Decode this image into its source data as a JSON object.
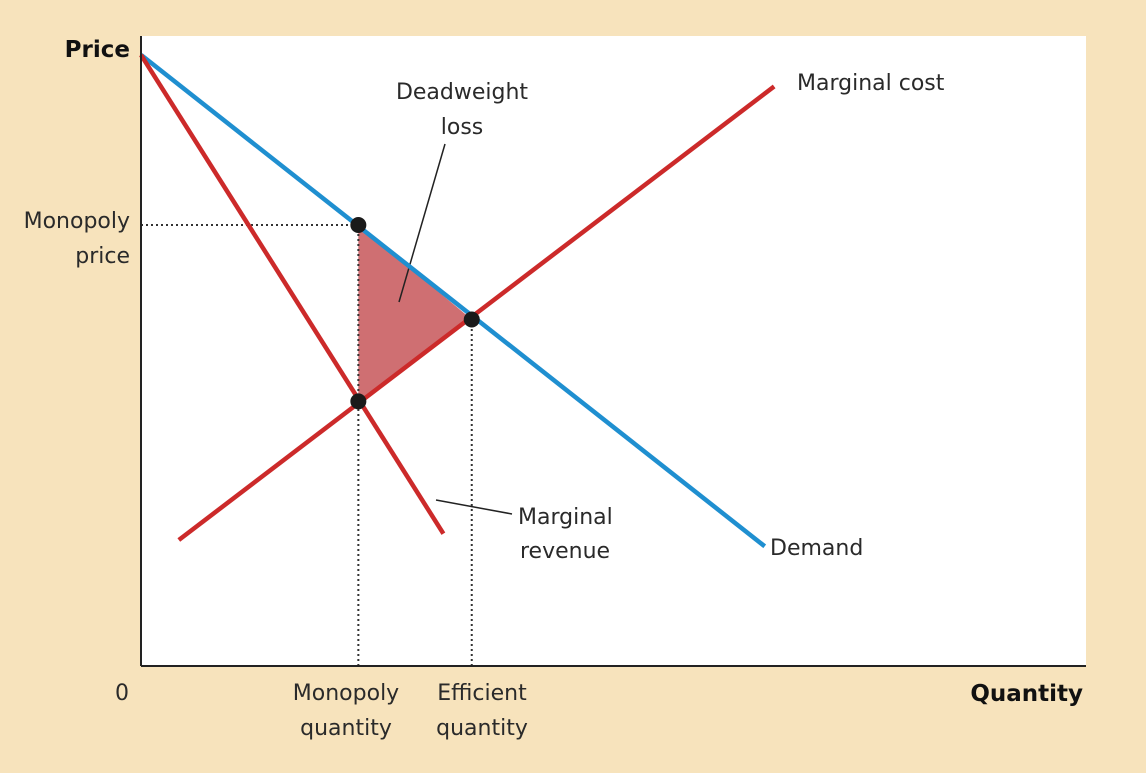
{
  "colors": {
    "background": "#f7e3bc",
    "plot_background": "#ffffff",
    "demand": "#1f8fd0",
    "red_lines": "#cc2a2a",
    "deadweight_fill": "#cf6f72",
    "points": "#1a1a1a"
  },
  "chart_data": {
    "type": "line",
    "xlabel": "Quantity",
    "ylabel": "Price",
    "origin_label": "0",
    "xlim": [
      0,
      100
    ],
    "ylim": [
      0,
      100
    ],
    "grid": false,
    "series": [
      {
        "name": "Demand",
        "color": "#1f8fd0",
        "points": [
          [
            0,
            97
          ],
          [
            66,
            19
          ]
        ]
      },
      {
        "name": "Marginal cost",
        "color": "#cc2a2a",
        "points": [
          [
            4,
            20
          ],
          [
            67,
            92
          ]
        ]
      },
      {
        "name": "Marginal revenue",
        "color": "#cc2a2a",
        "points": [
          [
            0,
            97
          ],
          [
            32,
            21
          ]
        ]
      }
    ],
    "points": [
      {
        "id": "monopoly-price-point",
        "x": 23,
        "y": 70
      },
      {
        "id": "efficient-point",
        "x": 35,
        "y": 55
      },
      {
        "id": "mr-mc-point",
        "x": 23,
        "y": 42
      }
    ],
    "deadweight_polygon": [
      [
        23,
        70
      ],
      [
        35,
        55
      ],
      [
        23,
        42
      ]
    ],
    "guides": [
      {
        "from": [
          0,
          70
        ],
        "to": [
          23,
          70
        ]
      },
      {
        "from": [
          23,
          0
        ],
        "to": [
          23,
          70
        ]
      },
      {
        "from": [
          35,
          0
        ],
        "to": [
          35,
          55
        ]
      }
    ],
    "annotations": {
      "marginal_cost": "Marginal cost",
      "demand": "Demand",
      "deadweight_line1": "Deadweight",
      "deadweight_line2": "loss",
      "mr_line1": "Marginal",
      "mr_line2": "revenue",
      "monopoly_price_line1": "Monopoly",
      "monopoly_price_line2": "price",
      "monopoly_qty_line1": "Monopoly",
      "monopoly_qty_line2": "quantity",
      "efficient_qty_line1": "Efficient",
      "efficient_qty_line2": "quantity"
    }
  }
}
